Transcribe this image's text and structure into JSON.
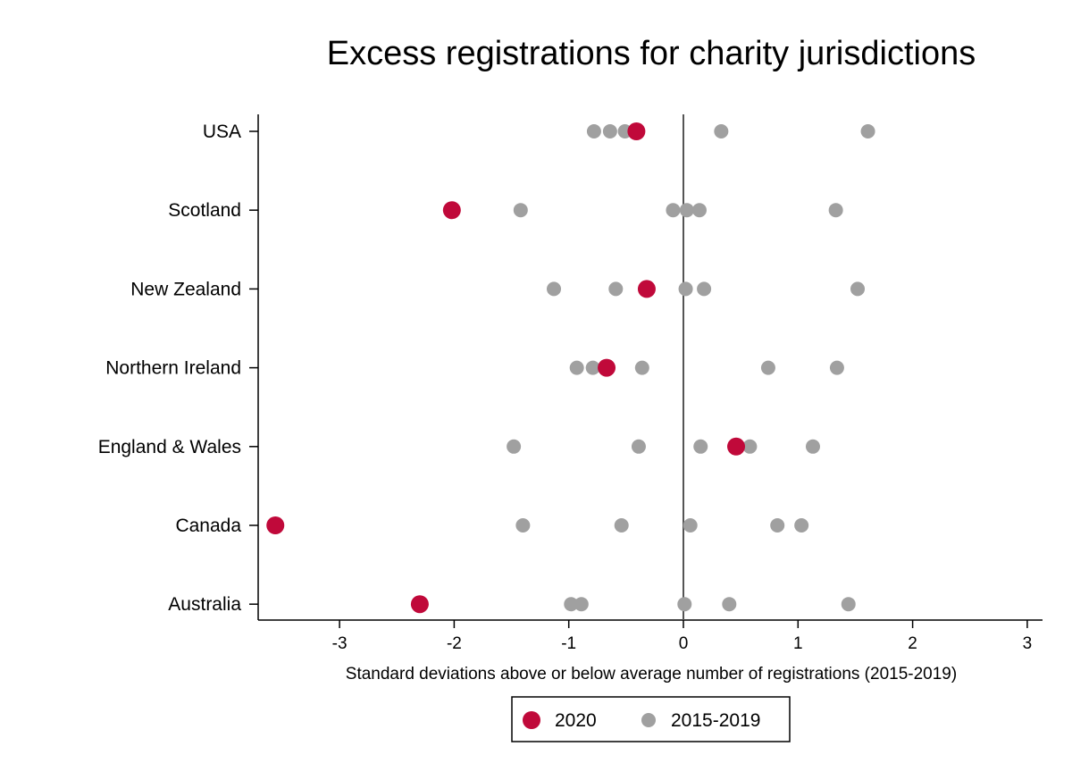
{
  "chart_data": {
    "type": "scatter",
    "title": "Excess registrations for charity jurisdictions",
    "xlabel": "Standard deviations above or below average number of registrations (2015-2019)",
    "ylabel": "",
    "xlim": [
      -3.7,
      3.15
    ],
    "xticks": [
      "-3",
      "-2",
      "-1",
      "0",
      "1",
      "2",
      "3"
    ],
    "reference_line_x": 0,
    "categories": [
      "USA",
      "Scotland",
      "New Zealand",
      "Northern Ireland",
      "England & Wales",
      "Canada",
      "Australia"
    ],
    "series": [
      {
        "name": "2020",
        "color": "#c0093a",
        "values": [
          -0.41,
          -2.02,
          -0.32,
          -0.67,
          0.46,
          -3.56,
          -2.3
        ]
      },
      {
        "name": "2015-2019",
        "color": "#a0a0a0",
        "values": [
          [
            -0.78,
            -0.64,
            -0.51,
            0.33,
            1.61
          ],
          [
            -1.42,
            -0.09,
            0.03,
            0.14,
            1.33
          ],
          [
            -1.13,
            -0.59,
            0.02,
            0.18,
            1.52
          ],
          [
            -0.93,
            -0.79,
            -0.36,
            0.74,
            1.34
          ],
          [
            -1.48,
            -0.39,
            0.15,
            0.58,
            1.13
          ],
          [
            -1.4,
            -0.54,
            0.06,
            0.82,
            1.03
          ],
          [
            -0.98,
            -0.89,
            0.01,
            0.4,
            1.44
          ]
        ]
      }
    ],
    "legend": {
      "placement": "bottom-center",
      "entries": [
        "2020",
        "2015-2019"
      ]
    },
    "grid": false
  }
}
